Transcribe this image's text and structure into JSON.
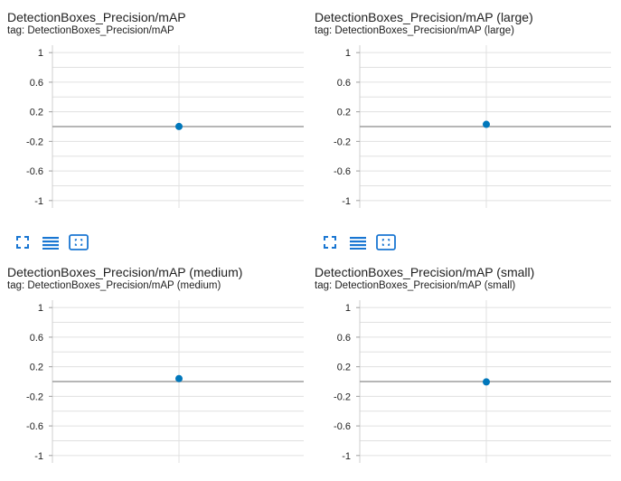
{
  "colors": {
    "accent": "#1976d2",
    "series": "#0077bb",
    "grid": "#e0e0e0",
    "zero_line": "#9e9e9e"
  },
  "toolbar_icons": [
    "fullscreen-icon",
    "toggle-log-scale-icon",
    "fit-domain-icon"
  ],
  "cards": [
    {
      "title": "DetectionBoxes_Precision/mAP",
      "tag": "tag: DetectionBoxes_Precision/mAP",
      "chart_data": {
        "type": "scatter",
        "yticks": [
          "1",
          "0.6",
          "0.2",
          "-0.2",
          "-0.6",
          "-1"
        ],
        "ylim": [
          -1.1,
          1.1
        ],
        "series": [
          {
            "values": [
              0.001
            ]
          }
        ]
      }
    },
    {
      "title": "DetectionBoxes_Precision/mAP (large)",
      "tag": "tag: DetectionBoxes_Precision/mAP (large)",
      "chart_data": {
        "type": "scatter",
        "yticks": [
          "1",
          "0.6",
          "0.2",
          "-0.2",
          "-0.6",
          "-1"
        ],
        "ylim": [
          -1.1,
          1.1
        ],
        "series": [
          {
            "values": [
              0.03
            ]
          }
        ]
      }
    },
    {
      "title": "DetectionBoxes_Precision/mAP (medium)",
      "tag": "tag: DetectionBoxes_Precision/mAP (medium)",
      "chart_data": {
        "type": "scatter",
        "yticks": [
          "1",
          "0.6",
          "0.2",
          "-0.2",
          "-0.6",
          "-1"
        ],
        "ylim": [
          -1.1,
          1.1
        ],
        "series": [
          {
            "values": [
              0.04
            ]
          }
        ]
      }
    },
    {
      "title": "DetectionBoxes_Precision/mAP (small)",
      "tag": "tag: DetectionBoxes_Precision/mAP (small)",
      "chart_data": {
        "type": "scatter",
        "yticks": [
          "1",
          "0.6",
          "0.2",
          "-0.2",
          "-0.6",
          "-1"
        ],
        "ylim": [
          -1.1,
          1.1
        ],
        "series": [
          {
            "values": [
              -0.005
            ]
          }
        ]
      }
    }
  ]
}
